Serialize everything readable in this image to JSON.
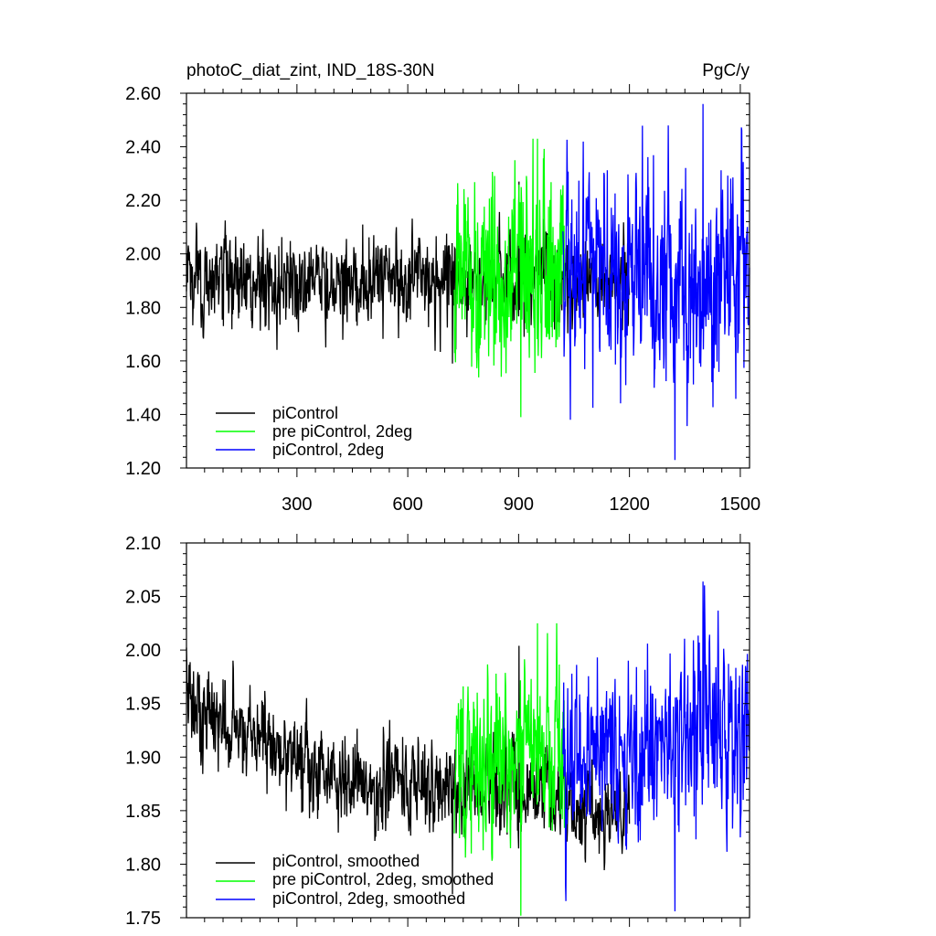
{
  "chart_data": [
    {
      "type": "line",
      "title": "photoC_diat_zint, IND_18S-30N",
      "units": "PgC/y",
      "xlabel": "",
      "ylabel": "",
      "xlim": [
        1,
        1525
      ],
      "ylim": [
        1.2,
        2.6
      ],
      "xticks": [
        300,
        600,
        900,
        1200,
        1500
      ],
      "xtick_labels": [
        "300",
        "600",
        "900",
        "1200",
        "1500"
      ],
      "yticks": [
        1.2,
        1.4,
        1.6,
        1.8,
        2.0,
        2.2,
        2.4,
        2.6
      ],
      "ytick_labels": [
        "1.20",
        "1.40",
        "1.60",
        "1.80",
        "2.00",
        "2.20",
        "2.40",
        "2.60"
      ],
      "legend_position": "bottom-left",
      "series": [
        {
          "name": "piControl",
          "color": "#000000",
          "x_range": [
            1,
            1200
          ],
          "mean": 1.9,
          "spread": 0.08,
          "min": 1.59,
          "max": 2.27
        },
        {
          "name": "pre piControl, 2deg",
          "color": "#00ff00",
          "x_range": [
            726,
            1025
          ],
          "mean": 1.92,
          "spread": 0.17,
          "min": 1.39,
          "max": 2.43
        },
        {
          "name": "piControl, 2deg",
          "color": "#0000ff",
          "x_range": [
            1020,
            1525
          ],
          "mean": 1.93,
          "spread": 0.18,
          "min": 1.23,
          "max": 2.56
        }
      ]
    },
    {
      "type": "line",
      "title": "",
      "xlabel": "",
      "ylabel": "",
      "xlim": [
        1,
        1525
      ],
      "ylim": [
        1.75,
        2.1
      ],
      "xticks": [
        300,
        600,
        900,
        1200,
        1500
      ],
      "yticks": [
        1.75,
        1.8,
        1.85,
        1.9,
        1.95,
        2.0,
        2.05,
        2.1
      ],
      "ytick_labels": [
        "1.75",
        "1.80",
        "1.85",
        "1.90",
        "1.95",
        "2.00",
        "2.05",
        "2.10"
      ],
      "legend_position": "bottom-left",
      "series": [
        {
          "name": "piControl, smoothed",
          "color": "#000000",
          "x_range": [
            1,
            1200
          ],
          "trend": [
            [
              1,
              1.95
            ],
            [
              300,
              1.9
            ],
            [
              500,
              1.875
            ],
            [
              720,
              1.875
            ],
            [
              1200,
              1.85
            ]
          ],
          "spread": 0.02,
          "min": 1.772,
          "max": 2.004
        },
        {
          "name": "pre piControl, 2deg, smoothed",
          "color": "#00ff00",
          "x_range": [
            726,
            1025
          ],
          "trend": [
            [
              726,
              1.9
            ],
            [
              1025,
              1.9
            ]
          ],
          "spread": 0.035,
          "min": 1.752,
          "max": 2.025
        },
        {
          "name": "piControl, 2deg, smoothed",
          "color": "#0000ff",
          "x_range": [
            1020,
            1525
          ],
          "trend": [
            [
              1020,
              1.9
            ],
            [
              1525,
              1.93
            ]
          ],
          "spread": 0.04,
          "min": 1.756,
          "max": 2.064
        }
      ]
    }
  ]
}
